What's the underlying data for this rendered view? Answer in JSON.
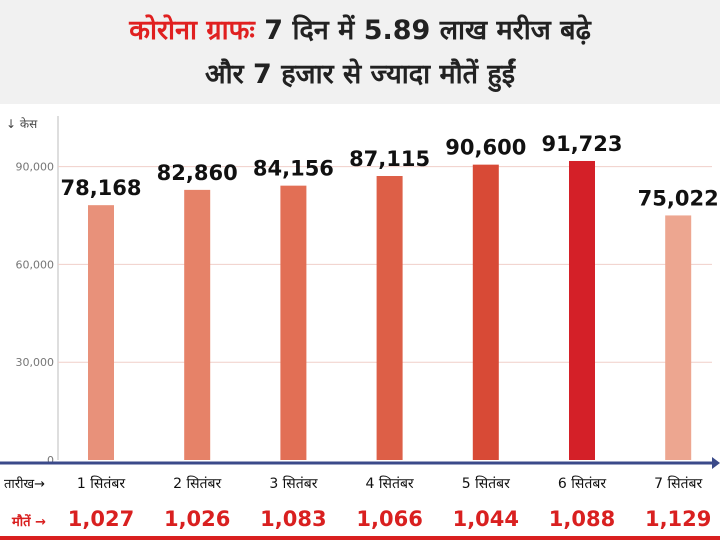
{
  "header": {
    "title_accent": "कोरोना ग्राफः",
    "title_rest": "7 दिन में 5.89 लाख मरीज बढ़े",
    "subtitle": "और 7 हजार से ज्यादा मौतें हुईं"
  },
  "chart_data": {
    "type": "bar",
    "ylabel": "↓ केस",
    "xlabel": "तारीख→",
    "ylim": [
      0,
      100000
    ],
    "yticks": [
      "0",
      "30,000",
      "60,000",
      "90,000"
    ],
    "ytick_values": [
      0,
      30000,
      60000,
      90000
    ],
    "grid": true,
    "categories": [
      "1 सितंबर",
      "2 सितंबर",
      "3 सितंबर",
      "4 सितंबर",
      "5 सितंबर",
      "6 सितंबर",
      "7 सितंबर"
    ],
    "values": [
      78168,
      82860,
      84156,
      87115,
      90600,
      91723,
      75022
    ],
    "value_labels": [
      "78,168",
      "82,860",
      "84,156",
      "87,115",
      "90,600",
      "91,723",
      "75,022"
    ],
    "bar_colors": [
      "#e8917a",
      "#e68268",
      "#e26f55",
      "#dd5f47",
      "#d84a36",
      "#d42028",
      "#eda690"
    ],
    "deaths_label": "मौतें →",
    "deaths": [
      "1,027",
      "1,026",
      "1,083",
      "1,066",
      "1,044",
      "1,088",
      "1,129"
    ],
    "axis_color": "#3b4a8a",
    "deaths_color": "#d92020"
  }
}
